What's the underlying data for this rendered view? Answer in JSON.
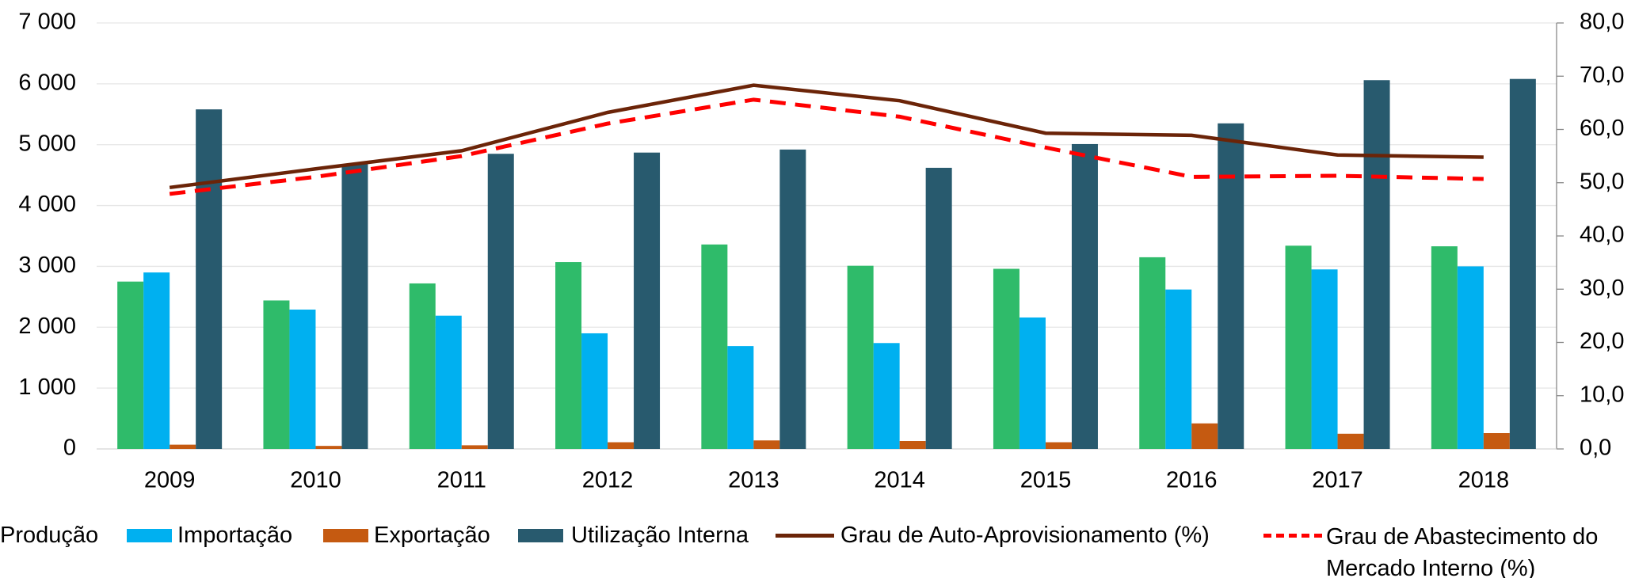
{
  "chart_data": {
    "type": "bar",
    "categories": [
      "2009",
      "2010",
      "2011",
      "2012",
      "2013",
      "2014",
      "2015",
      "2016",
      "2017",
      "2018"
    ],
    "series": [
      {
        "name": "Produção",
        "color": "#2fbb6a",
        "type": "bar",
        "values": [
          2750,
          2440,
          2720,
          3070,
          3360,
          3010,
          2960,
          3150,
          3340,
          3330
        ]
      },
      {
        "name": "Importação",
        "color": "#00b0f0",
        "type": "bar",
        "values": [
          2900,
          2290,
          2190,
          1900,
          1690,
          1740,
          2160,
          2620,
          2950,
          3000
        ]
      },
      {
        "name": "Exportação",
        "color": "#c55a11",
        "type": "bar",
        "values": [
          70,
          50,
          60,
          110,
          140,
          130,
          110,
          420,
          250,
          260
        ]
      },
      {
        "name": "Utilização Interna",
        "color": "#285a6e",
        "type": "bar",
        "values": [
          5580,
          4680,
          4850,
          4870,
          4920,
          4620,
          5010,
          5350,
          6060,
          6080
        ]
      },
      {
        "name": "Grau de Auto-Aprovisionamento (%)",
        "color": "#6b2408",
        "type": "line",
        "axis": "y2",
        "values": [
          49.1,
          52.6,
          56.0,
          63.2,
          68.3,
          65.4,
          59.3,
          58.9,
          55.2,
          54.8
        ]
      },
      {
        "name": "Grau de Abastecimento do Mercado Interno (%)",
        "color": "#ff0000",
        "type": "line",
        "dashed": true,
        "axis": "y2",
        "values": [
          47.9,
          51.1,
          55.0,
          61.1,
          65.6,
          62.4,
          56.6,
          51.1,
          51.3,
          50.7
        ]
      }
    ],
    "ylim": [
      0,
      7000
    ],
    "yticks": [
      0,
      {
        "value": 1000,
        "label": "1 000"
      },
      {
        "value": 2000,
        "label": "2 000"
      },
      {
        "value": 3000,
        "label": "3 000"
      },
      {
        "value": 4000,
        "label": "4 000"
      },
      {
        "value": 5000,
        "label": "5 000"
      },
      {
        "value": 6000,
        "label": "6 000"
      },
      {
        "value": 7000,
        "label": "7 000"
      }
    ],
    "y2lim": [
      0,
      80
    ],
    "y2ticks": [
      {
        "value": 0,
        "label": "0,0"
      },
      {
        "value": 10,
        "label": "10,0"
      },
      {
        "value": 20,
        "label": "20,0"
      },
      {
        "value": 30,
        "label": "30,0"
      },
      {
        "value": 40,
        "label": "40,0"
      },
      {
        "value": 50,
        "label": "50,0"
      },
      {
        "value": 60,
        "label": "60,0"
      },
      {
        "value": 70,
        "label": "70,0"
      },
      {
        "value": 80,
        "label": "80,0"
      }
    ],
    "grid": true
  }
}
